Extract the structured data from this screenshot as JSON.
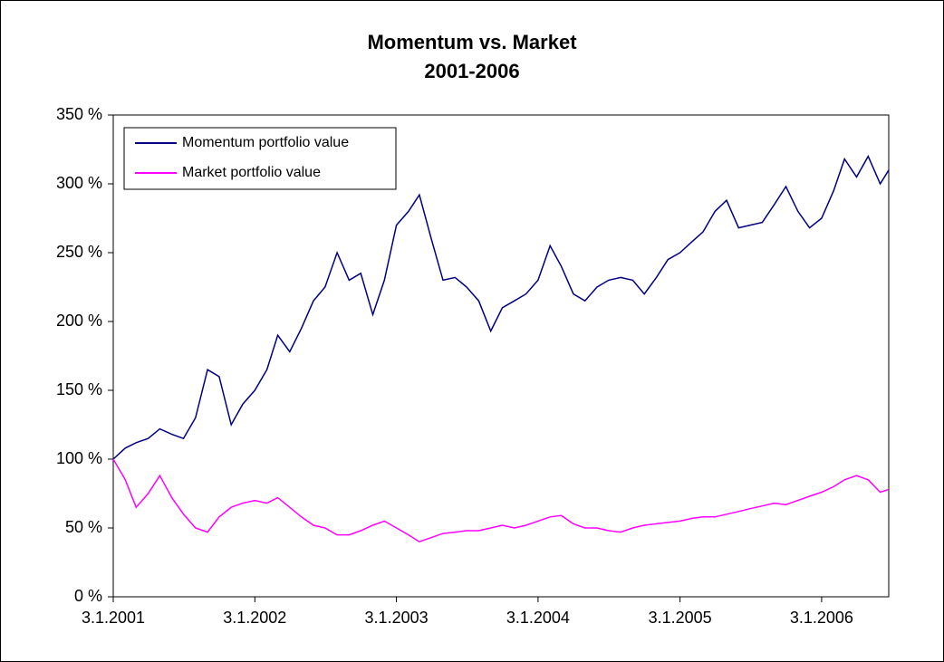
{
  "chart_data": {
    "type": "line",
    "title": "Momentum vs. Market",
    "subtitle": "2001-2006",
    "x": [
      "3.1.2001",
      "3.2.2001",
      "3.3.2001",
      "3.4.2001",
      "3.5.2001",
      "3.6.2001",
      "3.7.2001",
      "3.8.2001",
      "3.9.2001",
      "3.10.2001",
      "3.11.2001",
      "3.12.2001",
      "3.1.2002",
      "3.2.2002",
      "3.3.2002",
      "3.4.2002",
      "3.5.2002",
      "3.6.2002",
      "3.7.2002",
      "3.8.2002",
      "3.9.2002",
      "3.10.2002",
      "3.11.2002",
      "3.12.2002",
      "3.1.2003",
      "3.2.2003",
      "3.3.2003",
      "3.4.2003",
      "3.5.2003",
      "3.6.2003",
      "3.7.2003",
      "3.8.2003",
      "3.9.2003",
      "3.10.2003",
      "3.11.2003",
      "3.12.2003",
      "3.1.2004",
      "3.2.2004",
      "3.3.2004",
      "3.4.2004",
      "3.5.2004",
      "3.6.2004",
      "3.7.2004",
      "3.8.2004",
      "3.9.2004",
      "3.10.2004",
      "3.11.2004",
      "3.12.2004",
      "3.1.2005",
      "3.2.2005",
      "3.3.2005",
      "3.4.2005",
      "3.5.2005",
      "3.6.2005",
      "3.7.2005",
      "3.8.2005",
      "3.9.2005",
      "3.10.2005",
      "3.11.2005",
      "3.12.2005",
      "3.1.2006",
      "3.2.2006",
      "3.3.2006",
      "3.4.2006",
      "3.5.2006",
      "3.6.2006",
      "25.6.2006"
    ],
    "series": [
      {
        "name": "Momentum portfolio value",
        "color": "#000080",
        "values": [
          100,
          108,
          112,
          115,
          122,
          118,
          115,
          130,
          165,
          160,
          125,
          140,
          150,
          165,
          190,
          178,
          195,
          215,
          225,
          250,
          230,
          235,
          205,
          230,
          270,
          280,
          292,
          260,
          230,
          232,
          225,
          215,
          193,
          210,
          215,
          220,
          230,
          255,
          240,
          220,
          215,
          225,
          230,
          232,
          230,
          220,
          232,
          245,
          250,
          258,
          265,
          280,
          288,
          268,
          270,
          272,
          285,
          298,
          280,
          268,
          275,
          295,
          318,
          305,
          320,
          300,
          310
        ]
      },
      {
        "name": "Market portfolio value",
        "color": "#ff00ff",
        "values": [
          100,
          85,
          65,
          75,
          88,
          72,
          60,
          50,
          47,
          58,
          65,
          68,
          70,
          68,
          72,
          65,
          58,
          52,
          50,
          45,
          45,
          48,
          52,
          55,
          50,
          45,
          40,
          43,
          46,
          47,
          48,
          48,
          50,
          52,
          50,
          52,
          55,
          58,
          59,
          53,
          50,
          50,
          48,
          47,
          50,
          52,
          53,
          54,
          55,
          57,
          58,
          58,
          60,
          62,
          64,
          66,
          68,
          67,
          70,
          73,
          76,
          80,
          85,
          88,
          85,
          76,
          78
        ]
      }
    ],
    "xlim": [
      "3.1.2001",
      "25.6.2006"
    ],
    "xticks": [
      "3.1.2001",
      "3.1.2002",
      "3.1.2003",
      "3.1.2004",
      "3.1.2005",
      "3.1.2006"
    ],
    "ylim": [
      0,
      350
    ],
    "yticks": [
      {
        "value": 0,
        "label": "0 %"
      },
      {
        "value": 50,
        "label": "50 %"
      },
      {
        "value": 100,
        "label": "100 %"
      },
      {
        "value": 150,
        "label": "150 %"
      },
      {
        "value": 200,
        "label": "200 %"
      },
      {
        "value": 250,
        "label": "250 %"
      },
      {
        "value": 300,
        "label": "300 %"
      },
      {
        "value": 350,
        "label": "350 %"
      }
    ],
    "legend": "top-left",
    "grid": false
  }
}
